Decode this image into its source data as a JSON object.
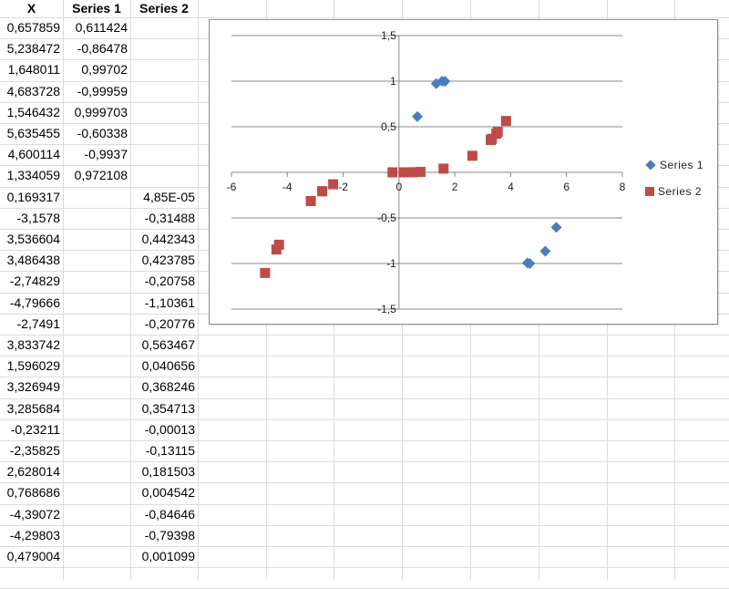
{
  "spreadsheet": {
    "headers": [
      "X",
      "Series 1",
      "Series 2"
    ],
    "rows": [
      {
        "x": "0,657859",
        "s1": "0,611424",
        "s2": ""
      },
      {
        "x": "5,238472",
        "s1": "-0,86478",
        "s2": ""
      },
      {
        "x": "1,648011",
        "s1": "0,99702",
        "s2": ""
      },
      {
        "x": "4,683728",
        "s1": "-0,99959",
        "s2": ""
      },
      {
        "x": "1,546432",
        "s1": "0,999703",
        "s2": ""
      },
      {
        "x": "5,635455",
        "s1": "-0,60338",
        "s2": ""
      },
      {
        "x": "4,600114",
        "s1": "-0,9937",
        "s2": ""
      },
      {
        "x": "1,334059",
        "s1": "0,972108",
        "s2": ""
      },
      {
        "x": "0,169317",
        "s1": "",
        "s2": "4,85E-05"
      },
      {
        "x": "-3,1578",
        "s1": "",
        "s2": "-0,31488"
      },
      {
        "x": "3,536604",
        "s1": "",
        "s2": "0,442343"
      },
      {
        "x": "3,486438",
        "s1": "",
        "s2": "0,423785"
      },
      {
        "x": "-2,74829",
        "s1": "",
        "s2": "-0,20758"
      },
      {
        "x": "-4,79666",
        "s1": "",
        "s2": "-1,10361"
      },
      {
        "x": "-2,7491",
        "s1": "",
        "s2": "-0,20776"
      },
      {
        "x": "3,833742",
        "s1": "",
        "s2": "0,563467"
      },
      {
        "x": "1,596029",
        "s1": "",
        "s2": "0,040656"
      },
      {
        "x": "3,326949",
        "s1": "",
        "s2": "0,368246"
      },
      {
        "x": "3,285684",
        "s1": "",
        "s2": "0,354713"
      },
      {
        "x": "-0,23211",
        "s1": "",
        "s2": "-0,00013"
      },
      {
        "x": "-2,35825",
        "s1": "",
        "s2": "-0,13115"
      },
      {
        "x": "2,628014",
        "s1": "",
        "s2": "0,181503"
      },
      {
        "x": "0,768686",
        "s1": "",
        "s2": "0,004542"
      },
      {
        "x": "-4,39072",
        "s1": "",
        "s2": "-0,84646"
      },
      {
        "x": "-4,29803",
        "s1": "",
        "s2": "-0,79398"
      },
      {
        "x": "0,479004",
        "s1": "",
        "s2": "0,001099"
      }
    ]
  },
  "chart_data": {
    "type": "scatter",
    "title": "",
    "xlabel": "",
    "ylabel": "",
    "xlim": [
      -6,
      8
    ],
    "ylim": [
      -1.5,
      1.5
    ],
    "x_ticks": [
      "-6",
      "-4",
      "-2",
      "0",
      "2",
      "4",
      "6",
      "8"
    ],
    "y_ticks": [
      "1,5",
      "1",
      "0,5",
      "0",
      "-0,5",
      "-1",
      "-1,5"
    ],
    "grid": "horizontal major gridlines",
    "legend_position": "right",
    "series": [
      {
        "name": "Series 1",
        "marker": "diamond",
        "color": "#4a7ebb",
        "points": [
          [
            0.657859,
            0.611424
          ],
          [
            5.238472,
            -0.86478
          ],
          [
            1.648011,
            0.99702
          ],
          [
            4.683728,
            -0.99959
          ],
          [
            1.546432,
            0.999703
          ],
          [
            5.635455,
            -0.60338
          ],
          [
            4.600114,
            -0.9937
          ],
          [
            1.334059,
            0.972108
          ]
        ]
      },
      {
        "name": "Series 2",
        "marker": "square",
        "color": "#be4b48",
        "points": [
          [
            0.169317,
            4.85e-05
          ],
          [
            -3.1578,
            -0.31488
          ],
          [
            3.536604,
            0.442343
          ],
          [
            3.486438,
            0.423785
          ],
          [
            -2.74829,
            -0.20758
          ],
          [
            -4.79666,
            -1.10361
          ],
          [
            -2.7491,
            -0.20776
          ],
          [
            3.833742,
            0.563467
          ],
          [
            1.596029,
            0.040656
          ],
          [
            3.326949,
            0.368246
          ],
          [
            3.285684,
            0.354713
          ],
          [
            -0.23211,
            -0.00013
          ],
          [
            -2.35825,
            -0.13115
          ],
          [
            2.628014,
            0.181503
          ],
          [
            0.768686,
            0.004542
          ],
          [
            -4.39072,
            -0.84646
          ],
          [
            -4.29803,
            -0.79398
          ],
          [
            0.479004,
            0.001099
          ]
        ]
      }
    ]
  },
  "legend": {
    "items": [
      {
        "label": "Series 1",
        "color": "#4a7ebb"
      },
      {
        "label": "Series 2",
        "color": "#be4b48"
      }
    ]
  }
}
